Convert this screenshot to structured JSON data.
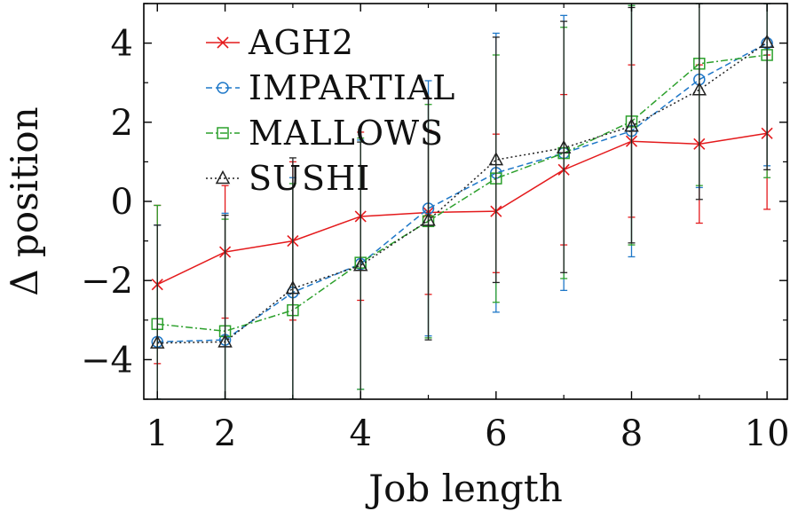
{
  "chart_data": {
    "type": "line",
    "xlabel": "Job length",
    "ylabel": "Δ position",
    "xlim": [
      0.8,
      10.3
    ],
    "ylim": [
      -5,
      5
    ],
    "xticks": [
      1,
      2,
      4,
      6,
      8,
      10
    ],
    "yticks": [
      -4,
      -2,
      0,
      2,
      4
    ],
    "ytick_labels": [
      "−4",
      "−2",
      "0",
      "2",
      "4"
    ],
    "grid": false,
    "legend_position": "top-left",
    "x": [
      1,
      2,
      3,
      4,
      5,
      6,
      7,
      8,
      9,
      10
    ],
    "series": [
      {
        "name": "AGH2",
        "color": "#e41a1c",
        "marker": "x",
        "line_style": "solid",
        "values": [
          -2.1,
          -1.28,
          -1.0,
          -0.38,
          -0.28,
          -0.25,
          0.8,
          1.52,
          1.45,
          1.72
        ],
        "err_low": [
          -4.1,
          -2.95,
          -3.0,
          -2.5,
          -2.35,
          -1.8,
          -1.1,
          -0.4,
          -0.55,
          -0.2
        ],
        "err_high": [
          -0.1,
          0.4,
          1.0,
          1.75,
          1.8,
          1.7,
          2.7,
          3.45,
          3.45,
          3.7
        ]
      },
      {
        "name": "IMPARTIAL",
        "color": "#1f78c8",
        "marker": "circle",
        "line_style": "dashed",
        "values": [
          -3.55,
          -3.5,
          -2.3,
          -1.58,
          -0.18,
          0.72,
          1.22,
          1.78,
          3.08,
          4.0
        ],
        "err_low": [
          -5.0,
          -5.0,
          -5.0,
          -4.75,
          -3.4,
          -2.8,
          -2.25,
          -1.4,
          0.35,
          0.9
        ],
        "err_high": [
          -0.6,
          -0.3,
          0.6,
          1.55,
          3.05,
          4.25,
          4.7,
          4.95,
          5.0,
          5.0
        ]
      },
      {
        "name": "MALLOWS",
        "color": "#2ca02c",
        "marker": "square",
        "line_style": "dashdot",
        "values": [
          -3.1,
          -3.28,
          -2.75,
          -1.55,
          -0.5,
          0.58,
          1.22,
          2.02,
          3.48,
          3.7
        ],
        "err_low": [
          -5.0,
          -5.0,
          -5.0,
          -4.75,
          -3.45,
          -2.55,
          -1.95,
          -1.1,
          0.4,
          0.6
        ],
        "err_high": [
          -0.1,
          -0.45,
          0.45,
          1.6,
          2.45,
          3.7,
          4.4,
          4.95,
          5.0,
          5.0
        ]
      },
      {
        "name": "SUSHI",
        "color": "#222222",
        "marker": "triangle",
        "line_style": "dotted",
        "values": [
          -3.58,
          -3.55,
          -2.2,
          -1.62,
          -0.48,
          1.05,
          1.35,
          1.9,
          2.82,
          4.02
        ],
        "err_low": [
          -5.0,
          -5.0,
          -5.0,
          -5.0,
          -3.5,
          -2.05,
          -1.8,
          -1.05,
          0.05,
          0.8
        ],
        "err_high": [
          -0.6,
          -0.35,
          1.1,
          1.5,
          2.6,
          4.15,
          4.55,
          4.9,
          5.0,
          5.0
        ]
      }
    ]
  }
}
